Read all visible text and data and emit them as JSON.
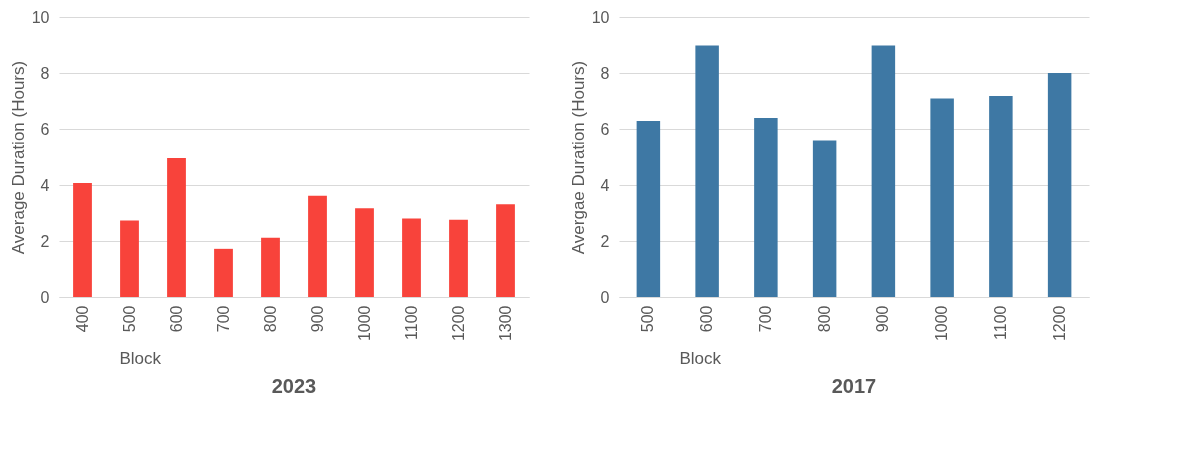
{
  "chart_data": [
    {
      "type": "bar",
      "title": "2023",
      "xlabel": "Block",
      "ylabel": "Average Duration (Hours)",
      "categories": [
        "400",
        "500",
        "600",
        "700",
        "800",
        "900",
        "1000",
        "1100",
        "1200",
        "1300"
      ],
      "values": [
        4.07,
        2.73,
        4.96,
        1.72,
        2.12,
        3.62,
        3.17,
        2.8,
        2.76,
        3.31
      ],
      "color": "#f8433b",
      "ylim": [
        0,
        10
      ],
      "yticks": [
        0,
        2,
        4,
        6,
        8,
        10
      ],
      "grid": "y"
    },
    {
      "type": "bar",
      "title": "2017",
      "xlabel": "Block",
      "ylabel": "Avergae Duration (Hours)",
      "categories": [
        "500",
        "600",
        "700",
        "800",
        "900",
        "1000",
        "1100",
        "1200"
      ],
      "values": [
        6.29,
        8.98,
        6.39,
        5.59,
        8.98,
        7.09,
        7.18,
        8.0
      ],
      "color": "#3e78a4",
      "ylim": [
        0,
        10
      ],
      "yticks": [
        0,
        2,
        4,
        6,
        8,
        10
      ],
      "grid": "y"
    }
  ]
}
